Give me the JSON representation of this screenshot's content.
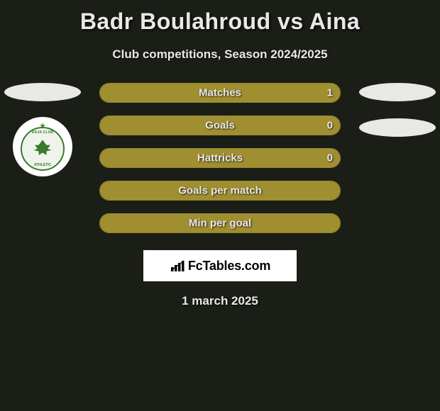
{
  "title": "Badr Boulahroud vs Aina",
  "subtitle": "Club competitions, Season 2024/2025",
  "date": "1 march 2025",
  "brand": "FcTables.com",
  "colors": {
    "background": "#1a1e17",
    "bar_border": "#9a8a2f",
    "bar_fill": "#a08f30",
    "text": "#e8e8e8",
    "ellipse": "#e8e9e6",
    "badge_bg": "#ffffff",
    "badge_ring": "#3a7a2f"
  },
  "stats": [
    {
      "label": "Matches",
      "value_right": "1",
      "fill_pct": 100
    },
    {
      "label": "Goals",
      "value_right": "0",
      "fill_pct": 100
    },
    {
      "label": "Hattricks",
      "value_right": "0",
      "fill_pct": 100
    },
    {
      "label": "Goals per match",
      "value_right": "",
      "fill_pct": 100
    },
    {
      "label": "Min per goal",
      "value_right": "",
      "fill_pct": 100
    }
  ],
  "left_badges": {
    "ellipses": 1,
    "club_visible": true
  },
  "right_badges": {
    "ellipses": 2
  }
}
